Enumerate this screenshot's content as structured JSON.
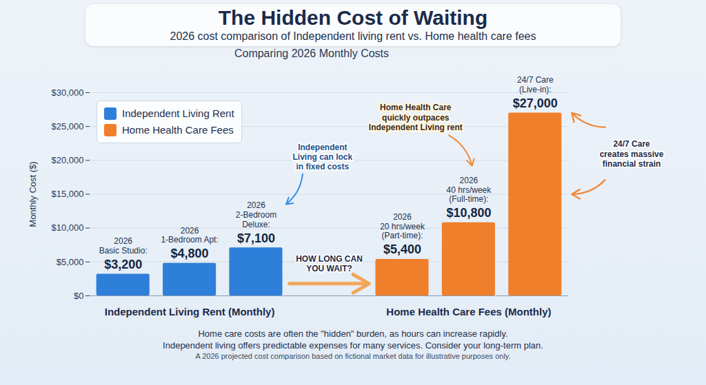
{
  "chart_data": {
    "type": "bar",
    "title": "The Hidden Cost of Waiting",
    "subtitle": "2026 cost comparison of Independent living rent vs. Home health care fees",
    "plot_title": "Comparing 2026 Monthly Costs",
    "ylabel": "Monthly Cost ($)",
    "categories": [
      "2026 Basic Studio:",
      "2026 1-Bedroom Apt:",
      "2026 2-Bedroom Deluxe:",
      "2026 20 hrs/week (Part-time):",
      "2026 40 hrs/week (Full-time):",
      "24/7 Care (Live-in):"
    ],
    "series": [
      {
        "name": "Independent Living Rent",
        "color": "#2e7fd9",
        "values": [
          3200,
          4800,
          7100,
          null,
          null,
          null
        ],
        "value_labels": [
          "$3,200",
          "$4,800",
          "$7,100",
          null,
          null,
          null
        ]
      },
      {
        "name": "Home Health Care Fees",
        "color": "#f07f2c",
        "values": [
          null,
          null,
          null,
          5400,
          10800,
          27000
        ],
        "value_labels": [
          null,
          null,
          null,
          "$5,400",
          "$10,800",
          "$27,000"
        ]
      }
    ],
    "group_labels": [
      "Independent Living Rent (Monthly)",
      "Home Health Care Fees (Monthly)"
    ],
    "annotations": [
      "Independent Living can lock in fixed costs",
      "Home Health Care quickly outpaces Independent Living rent",
      "HOW LONG CAN YOU WAIT?",
      "24/7 Care creates massive financial strain"
    ],
    "caption": [
      "Home care costs are often the \"hidden\" burden, as hours can increase rapidly.",
      "Independent living offers predictable expenses for many services. Consider your long-term plan."
    ],
    "note": "A 2026 projected cost comparison based on fictional market data for illustrative purposes only.",
    "ylim": [
      0,
      30000
    ],
    "yticks": [
      {
        "value": 0,
        "label": "$0"
      },
      {
        "value": 5000,
        "label": "$5,000"
      },
      {
        "value": 10000,
        "label": "$10,000"
      },
      {
        "value": 15000,
        "label": "$15,000"
      },
      {
        "value": 20000,
        "label": "$20,000"
      },
      {
        "value": 25000,
        "label": "$25,000"
      },
      {
        "value": 30000,
        "label": "$30,000"
      }
    ],
    "grid": true,
    "legend": "top-left",
    "data_labels": true,
    "tick_labels": "y"
  }
}
